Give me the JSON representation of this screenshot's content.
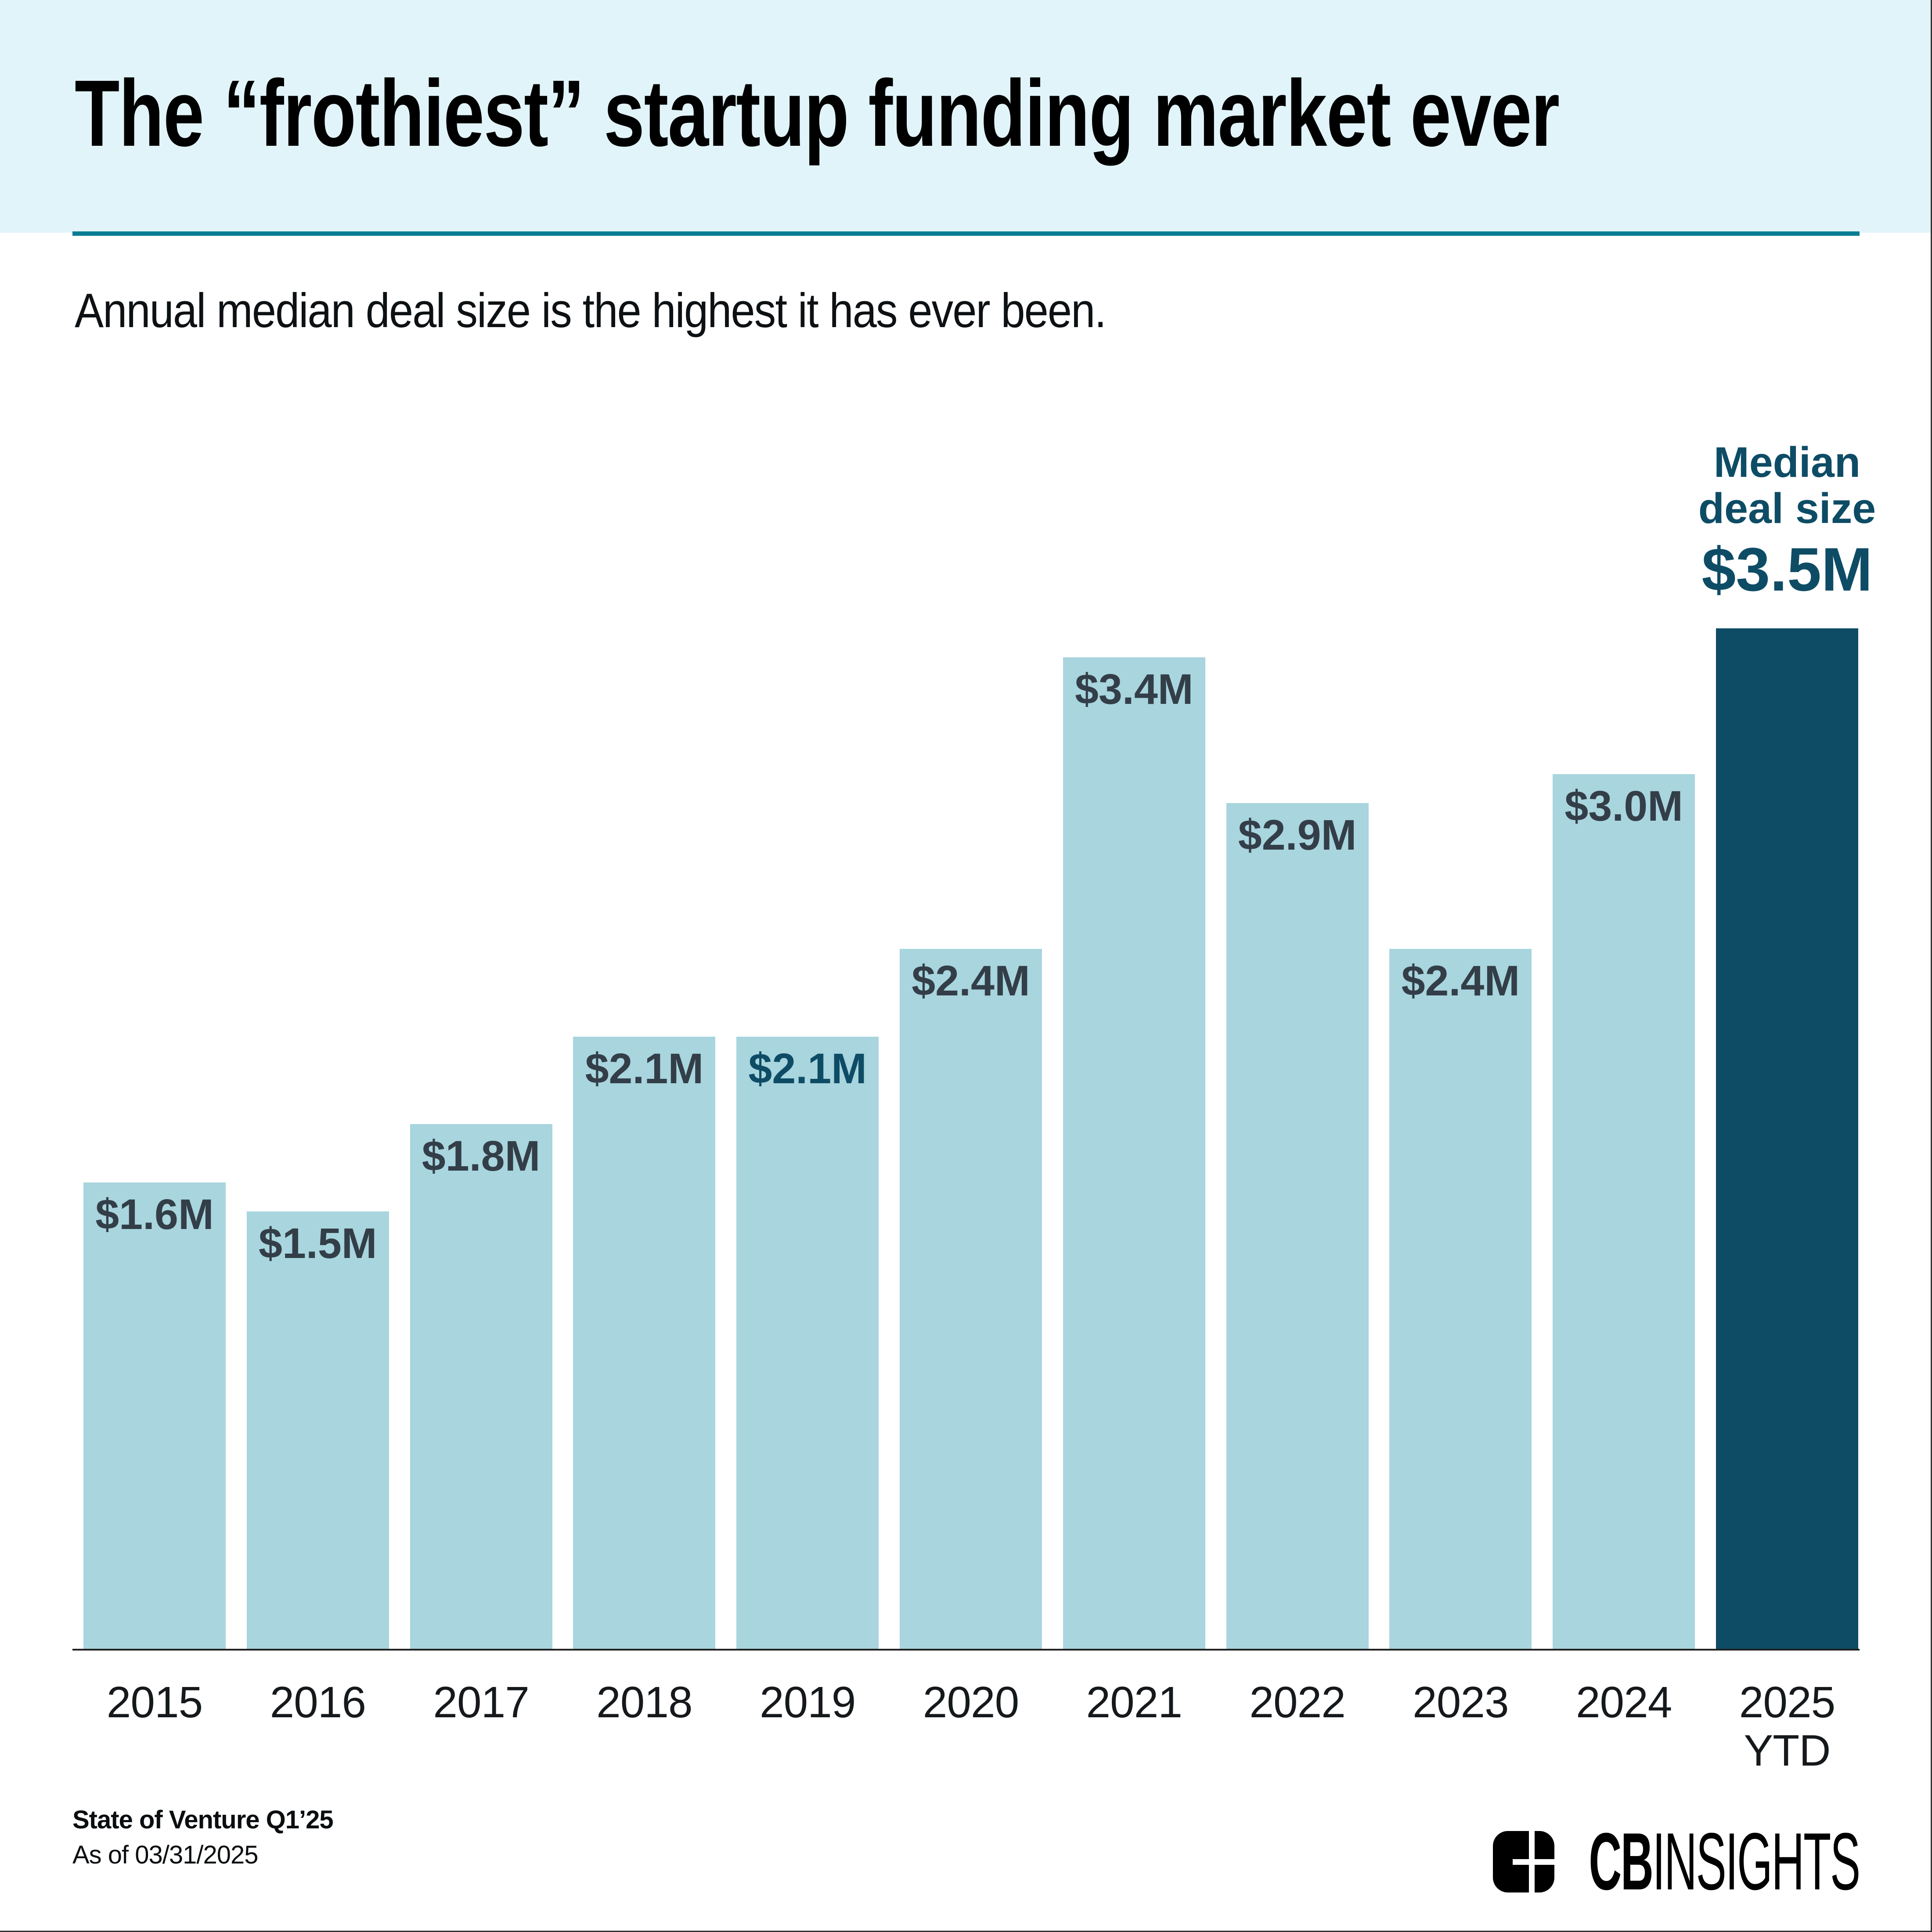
{
  "page": {
    "title": "The “frothiest” startup funding market ever",
    "subtitle": "Annual median deal size is the highest it has ever been."
  },
  "chart_data": {
    "type": "bar",
    "title": "The “frothiest” startup funding market ever",
    "subtitle": "Annual median deal size is the highest it has ever been.",
    "ylabel": "Median deal size ($M)",
    "xlabel": "",
    "ylim": [
      0,
      3.5
    ],
    "grid": false,
    "legend": false,
    "categories": [
      "2015",
      "2016",
      "2017",
      "2018",
      "2019",
      "2020",
      "2021",
      "2022",
      "2023",
      "2024",
      "2025 YTD"
    ],
    "values": [
      1.6,
      1.5,
      1.8,
      2.1,
      2.1,
      2.4,
      3.4,
      2.9,
      2.4,
      3.0,
      3.5
    ],
    "labels": [
      "$1.6M",
      "$1.5M",
      "$1.8M",
      "$2.1M",
      "$2.1M",
      "$2.4M",
      "$3.4M",
      "$2.9M",
      "$2.4M",
      "$3.0M",
      "$3.5M"
    ],
    "highlight_index": 10,
    "bars": [
      {
        "year": "2015",
        "value": 1.6,
        "label": "$1.6M",
        "variant": "default"
      },
      {
        "year": "2016",
        "value": 1.5,
        "label": "$1.5M",
        "variant": "default"
      },
      {
        "year": "2017",
        "value": 1.8,
        "label": "$1.8M",
        "variant": "default"
      },
      {
        "year": "2018",
        "value": 2.1,
        "label": "$2.1M",
        "variant": "default"
      },
      {
        "year": "2019",
        "value": 2.1,
        "label": "$2.1M",
        "variant": "teal-label"
      },
      {
        "year": "2020",
        "value": 2.4,
        "label": "$2.4M",
        "variant": "default"
      },
      {
        "year": "2021",
        "value": 3.4,
        "label": "$3.4M",
        "variant": "default"
      },
      {
        "year": "2022",
        "value": 2.9,
        "label": "$2.9M",
        "variant": "default"
      },
      {
        "year": "2023",
        "value": 2.4,
        "label": "$2.4M",
        "variant": "default"
      },
      {
        "year": "2024",
        "value": 3.0,
        "label": "$3.0M",
        "variant": "default"
      },
      {
        "year": "2025",
        "year_line2": "YTD",
        "value": 3.5,
        "label": "$3.5M",
        "variant": "highlight"
      }
    ],
    "annotation": {
      "line1": "Median",
      "line2": "deal size",
      "value": "$3.5M"
    }
  },
  "footer": {
    "source_bold": "State of Venture Q1’25",
    "source_date": "As of 03/31/2025",
    "logo_cb": "CB",
    "logo_insights": "INSIGHTS"
  },
  "colors": {
    "header_bg": "#E1F4FA",
    "rule_teal": "#0A7D92",
    "bar_fill": "#A8D5DE",
    "bar_highlight": "#0E4C66",
    "value_label": "#333E48",
    "teal_text": "#0E4C66",
    "axis": "#222222"
  }
}
